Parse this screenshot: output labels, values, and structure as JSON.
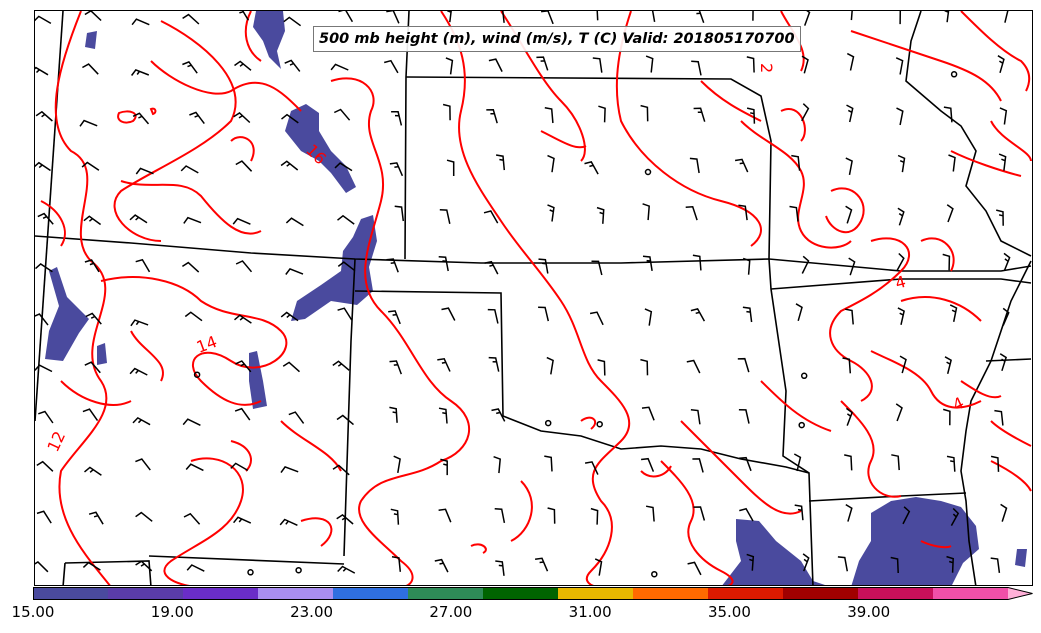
{
  "title": "500 mb height (m), wind (m/s), T (C) Valid: 201805170700",
  "contour_labels": [
    {
      "text": "14",
      "map": "temp"
    },
    {
      "text": "12",
      "map": "temp"
    },
    {
      "text": "4",
      "map": "temp"
    },
    {
      "text": "4",
      "map": "temp"
    },
    {
      "text": "2",
      "map": "temp"
    },
    {
      "text": "16",
      "map": "temp"
    }
  ],
  "colorbar": {
    "colors": [
      "#4a4a9e",
      "#5a3ca8",
      "#6a2dc8",
      "#a98ef0",
      "#2f6fe0",
      "#2e8b57",
      "#006400",
      "#e8b800",
      "#ff6a00",
      "#dd1a00",
      "#a00000",
      "#c8105a",
      "#f050a8",
      "#ffb0d8"
    ],
    "tick_labels": [
      "15.00",
      "19.00",
      "23.00",
      "27.00",
      "31.00",
      "35.00",
      "39.00"
    ],
    "min": 15,
    "max": 43,
    "extend": "max"
  }
}
